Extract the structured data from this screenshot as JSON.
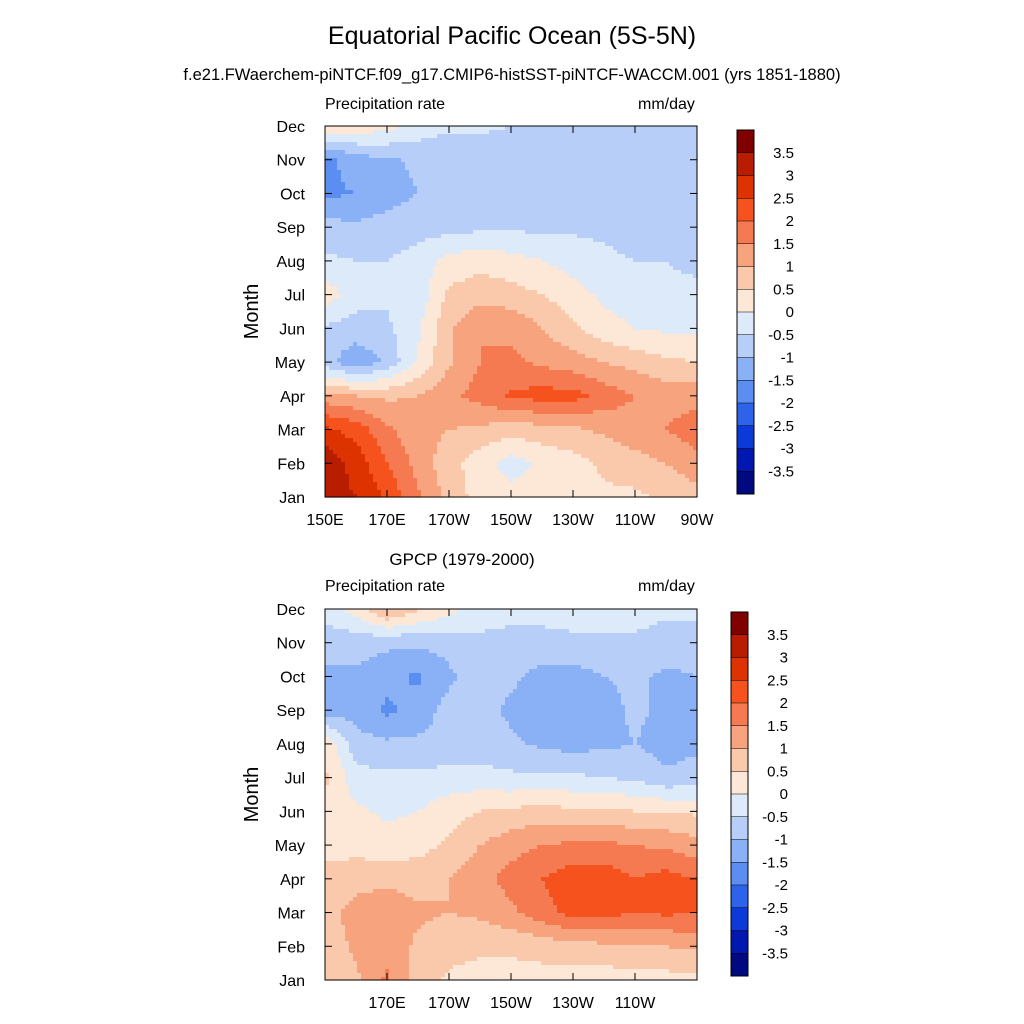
{
  "title": "Equatorial Pacific Ocean (5S-5N)",
  "subtitle": "f.e21.FWaerchem-piNTCF.f09_g17.CMIP6-histSST-piNTCF-WACCM.001 (yrs 1851-1880)",
  "colorbar": {
    "labels": [
      "3.5",
      "3",
      "2.5",
      "2",
      "1.5",
      "1",
      "0.5",
      "0",
      "-0.5",
      "-1",
      "-1.5",
      "-2",
      "-2.5",
      "-3",
      "-3.5"
    ],
    "colors": [
      "#800000",
      "#b81d00",
      "#dd3300",
      "#f6521e",
      "#f57a52",
      "#f7a47e",
      "#fac9ab",
      "#fde8d7",
      "#ddeafa",
      "#b7cef8",
      "#8ab0f5",
      "#5b8ef0",
      "#2d62ea",
      "#0b3ad9",
      "#0018b0",
      "#000a80"
    ]
  },
  "chart_data": [
    {
      "type": "heatmap",
      "title": "",
      "left_label": "Precipitation rate",
      "right_label": "mm/day",
      "ylabel": "Month",
      "xlabel": "",
      "x_ticks": [
        "150E",
        "170E",
        "170W",
        "150W",
        "130W",
        "110W",
        "90W"
      ],
      "y_ticks": [
        "Jan",
        "Feb",
        "Mar",
        "Apr",
        "May",
        "Jun",
        "Jul",
        "Aug",
        "Sep",
        "Oct",
        "Nov",
        "Dec"
      ],
      "x": [
        "150E",
        "160E",
        "170E",
        "180",
        "170W",
        "160W",
        "150W",
        "140W",
        "130W",
        "120W",
        "110W",
        "100W",
        "90W"
      ],
      "y": [
        "Jan",
        "Feb",
        "Mar",
        "Apr",
        "May",
        "Jun",
        "Jul",
        "Aug",
        "Sep",
        "Oct",
        "Nov",
        "Dec"
      ],
      "z": [
        [
          3.2,
          3.0,
          2.4,
          1.6,
          0.8,
          0.3,
          0.2,
          0.2,
          0.3,
          0.4,
          0.4,
          0.6,
          0.8
        ],
        [
          3.4,
          2.8,
          2.0,
          1.3,
          0.7,
          0.2,
          -0.2,
          0.1,
          0.3,
          0.6,
          0.8,
          1.0,
          1.3
        ],
        [
          2.6,
          2.3,
          1.6,
          1.2,
          1.0,
          0.9,
          0.7,
          0.8,
          0.9,
          1.1,
          1.3,
          1.5,
          1.8
        ],
        [
          1.2,
          1.0,
          0.9,
          1.0,
          1.4,
          1.7,
          2.1,
          2.2,
          2.2,
          1.8,
          1.5,
          1.3,
          1.3
        ],
        [
          -0.8,
          -1.4,
          -0.9,
          0.1,
          0.9,
          1.5,
          1.6,
          1.4,
          1.2,
          1.0,
          0.8,
          0.6,
          0.5
        ],
        [
          -0.6,
          -0.7,
          -0.6,
          -0.1,
          0.9,
          1.5,
          1.4,
          1.0,
          0.6,
          0.2,
          0.0,
          -0.1,
          -0.1
        ],
        [
          0.3,
          -0.3,
          -0.4,
          -0.3,
          0.6,
          0.8,
          0.7,
          0.5,
          0.2,
          -0.1,
          -0.3,
          -0.4,
          -0.4
        ],
        [
          -0.4,
          -0.5,
          -0.5,
          -0.3,
          0.2,
          0.3,
          0.2,
          0.0,
          -0.2,
          -0.4,
          -0.5,
          -0.5,
          -0.6
        ],
        [
          -0.8,
          -0.9,
          -0.8,
          -0.7,
          -0.7,
          -0.6,
          -0.6,
          -0.6,
          -0.6,
          -0.6,
          -0.7,
          -0.7,
          -0.8
        ],
        [
          -1.6,
          -1.5,
          -1.2,
          -1.0,
          -0.9,
          -0.9,
          -1.0,
          -1.0,
          -0.7,
          -0.7,
          -0.7,
          -0.7,
          -0.8
        ],
        [
          -1.7,
          -1.2,
          -1.1,
          -0.9,
          -0.9,
          -0.8,
          -0.8,
          -0.9,
          -0.7,
          -0.7,
          -0.7,
          -0.7,
          -0.9
        ],
        [
          0.4,
          0.3,
          0.2,
          -0.2,
          -0.4,
          -0.4,
          -0.5,
          -0.5,
          -0.6,
          -0.6,
          -0.6,
          -0.6,
          -0.7
        ]
      ]
    },
    {
      "type": "heatmap",
      "title": "GPCP (1979-2000)",
      "left_label": "Precipitation rate",
      "right_label": "mm/day",
      "ylabel": "Month",
      "xlabel": "",
      "x_ticks": [
        "170E",
        "170W",
        "150W",
        "130W",
        "110W"
      ],
      "y_ticks": [
        "Jan",
        "Feb",
        "Mar",
        "Apr",
        "May",
        "Jun",
        "Jul",
        "Aug",
        "Sep",
        "Oct",
        "Nov",
        "Dec"
      ],
      "x": [
        "150E",
        "160E",
        "170E",
        "180",
        "170W",
        "160W",
        "150W",
        "140W",
        "130W",
        "120W",
        "110W",
        "100W",
        "90W"
      ],
      "y": [
        "Jan",
        "Feb",
        "Mar",
        "Apr",
        "May",
        "Jun",
        "Jul",
        "Aug",
        "Sep",
        "Oct",
        "Nov",
        "Dec"
      ],
      "z": [
        [
          0.6,
          0.9,
          1.6,
          0.8,
          0.4,
          0.3,
          0.3,
          0.3,
          0.3,
          0.2,
          0.3,
          0.3,
          0.4
        ],
        [
          0.7,
          1.1,
          1.3,
          0.9,
          0.7,
          0.6,
          0.6,
          0.7,
          0.8,
          0.9,
          1.0,
          1.0,
          1.1
        ],
        [
          0.8,
          1.2,
          1.3,
          1.1,
          1.0,
          1.1,
          1.4,
          1.8,
          2.2,
          2.2,
          2.0,
          2.1,
          2.0
        ],
        [
          0.6,
          0.8,
          0.9,
          0.8,
          1.0,
          1.3,
          1.7,
          2.0,
          2.3,
          2.3,
          2.0,
          2.2,
          2.0
        ],
        [
          0.4,
          0.3,
          0.2,
          0.3,
          0.6,
          1.0,
          1.3,
          1.5,
          1.6,
          1.6,
          1.5,
          1.4,
          1.2
        ],
        [
          0.3,
          0.1,
          -0.1,
          0.0,
          0.3,
          0.5,
          0.6,
          0.7,
          0.6,
          0.6,
          0.5,
          0.5,
          0.4
        ],
        [
          0.6,
          -0.3,
          -0.4,
          -0.4,
          -0.3,
          -0.3,
          -0.4,
          -0.4,
          -0.4,
          -0.5,
          -0.6,
          -0.9,
          -0.8
        ],
        [
          0.4,
          -0.8,
          -0.9,
          -0.9,
          -0.8,
          -0.8,
          -0.9,
          -1.1,
          -1.2,
          -1.1,
          -1.0,
          -1.2,
          -1.1
        ],
        [
          -1.3,
          -1.2,
          -1.6,
          -1.3,
          -0.8,
          -0.8,
          -1.1,
          -1.3,
          -1.4,
          -1.2,
          -0.9,
          -1.1,
          -1.1
        ],
        [
          -1.1,
          -1.1,
          -1.3,
          -1.6,
          -1.1,
          -0.8,
          -0.9,
          -1.2,
          -1.2,
          -1.0,
          -0.9,
          -1.1,
          -1.0
        ],
        [
          -0.8,
          -0.8,
          -0.9,
          -0.9,
          -0.8,
          -0.6,
          -0.6,
          -0.6,
          -0.6,
          -0.6,
          -0.6,
          -0.7,
          -0.7
        ],
        [
          -0.3,
          0.2,
          1.1,
          0.6,
          0.2,
          -0.3,
          -0.4,
          -0.4,
          -0.3,
          -0.3,
          -0.3,
          -0.4,
          -0.4
        ]
      ]
    }
  ]
}
